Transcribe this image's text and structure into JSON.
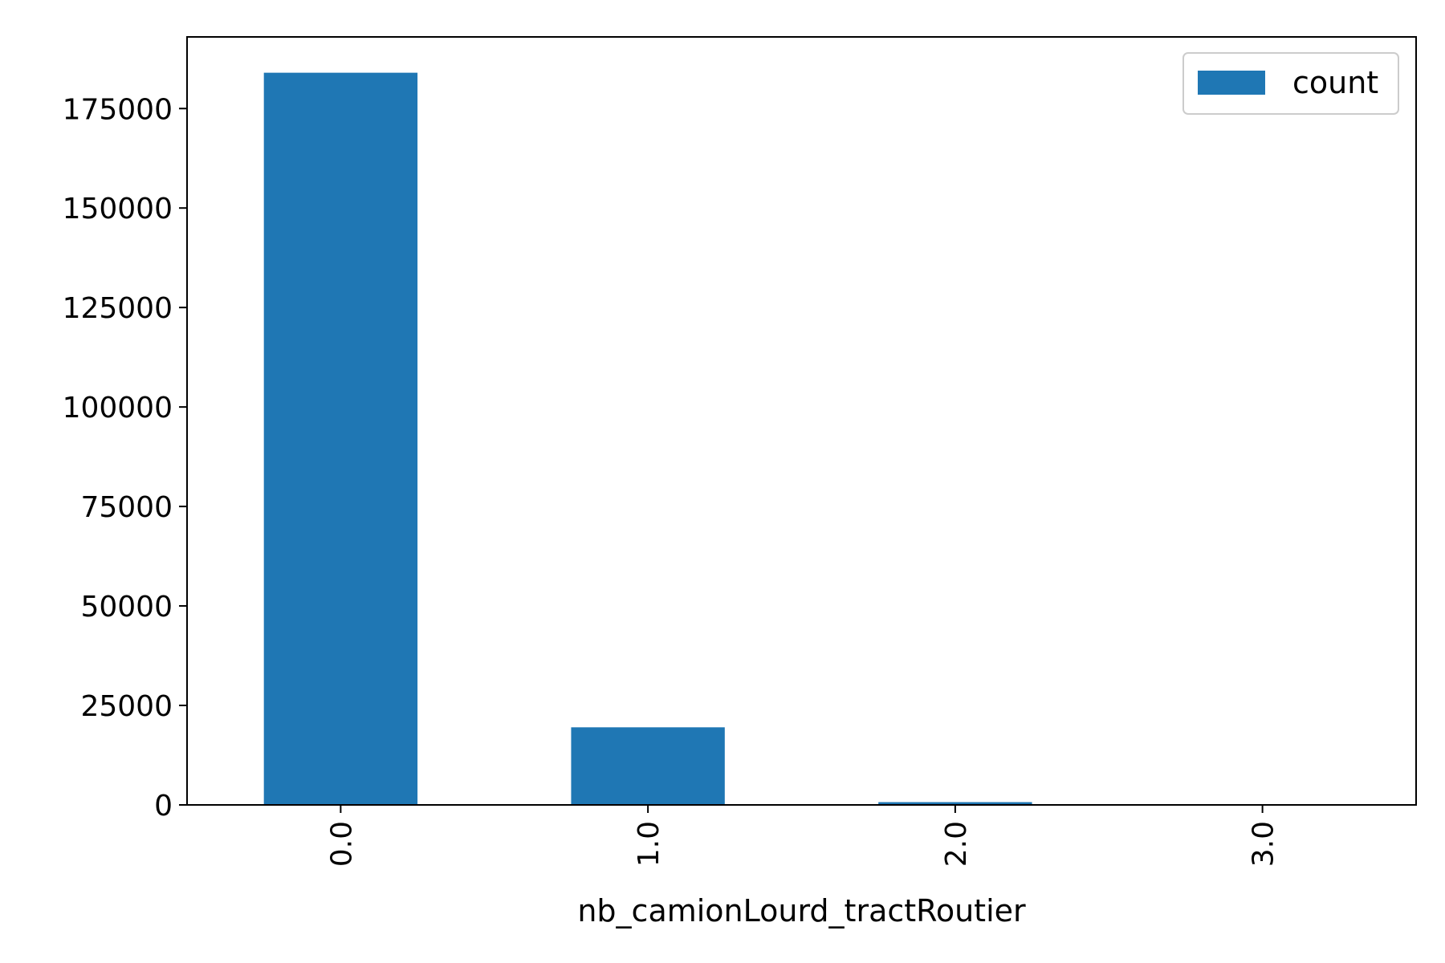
{
  "chart_data": {
    "type": "bar",
    "title": "",
    "xlabel": "nb_camionLourd_tractRoutier",
    "ylabel": "",
    "categories": [
      "0.0",
      "1.0",
      "2.0",
      "3.0"
    ],
    "series": [
      {
        "name": "count",
        "values": [
          184000,
          19500,
          700,
          15
        ],
        "color": "#1f77b4"
      }
    ],
    "ylim": [
      0,
      193000
    ],
    "yticks": [
      0,
      25000,
      50000,
      75000,
      100000,
      125000,
      150000,
      175000
    ],
    "ytick_labels": [
      "0",
      "25000",
      "50000",
      "75000",
      "100000",
      "125000",
      "150000",
      "175000"
    ],
    "grid": false,
    "legend": {
      "position": "top-right",
      "entries": [
        "count"
      ]
    }
  }
}
